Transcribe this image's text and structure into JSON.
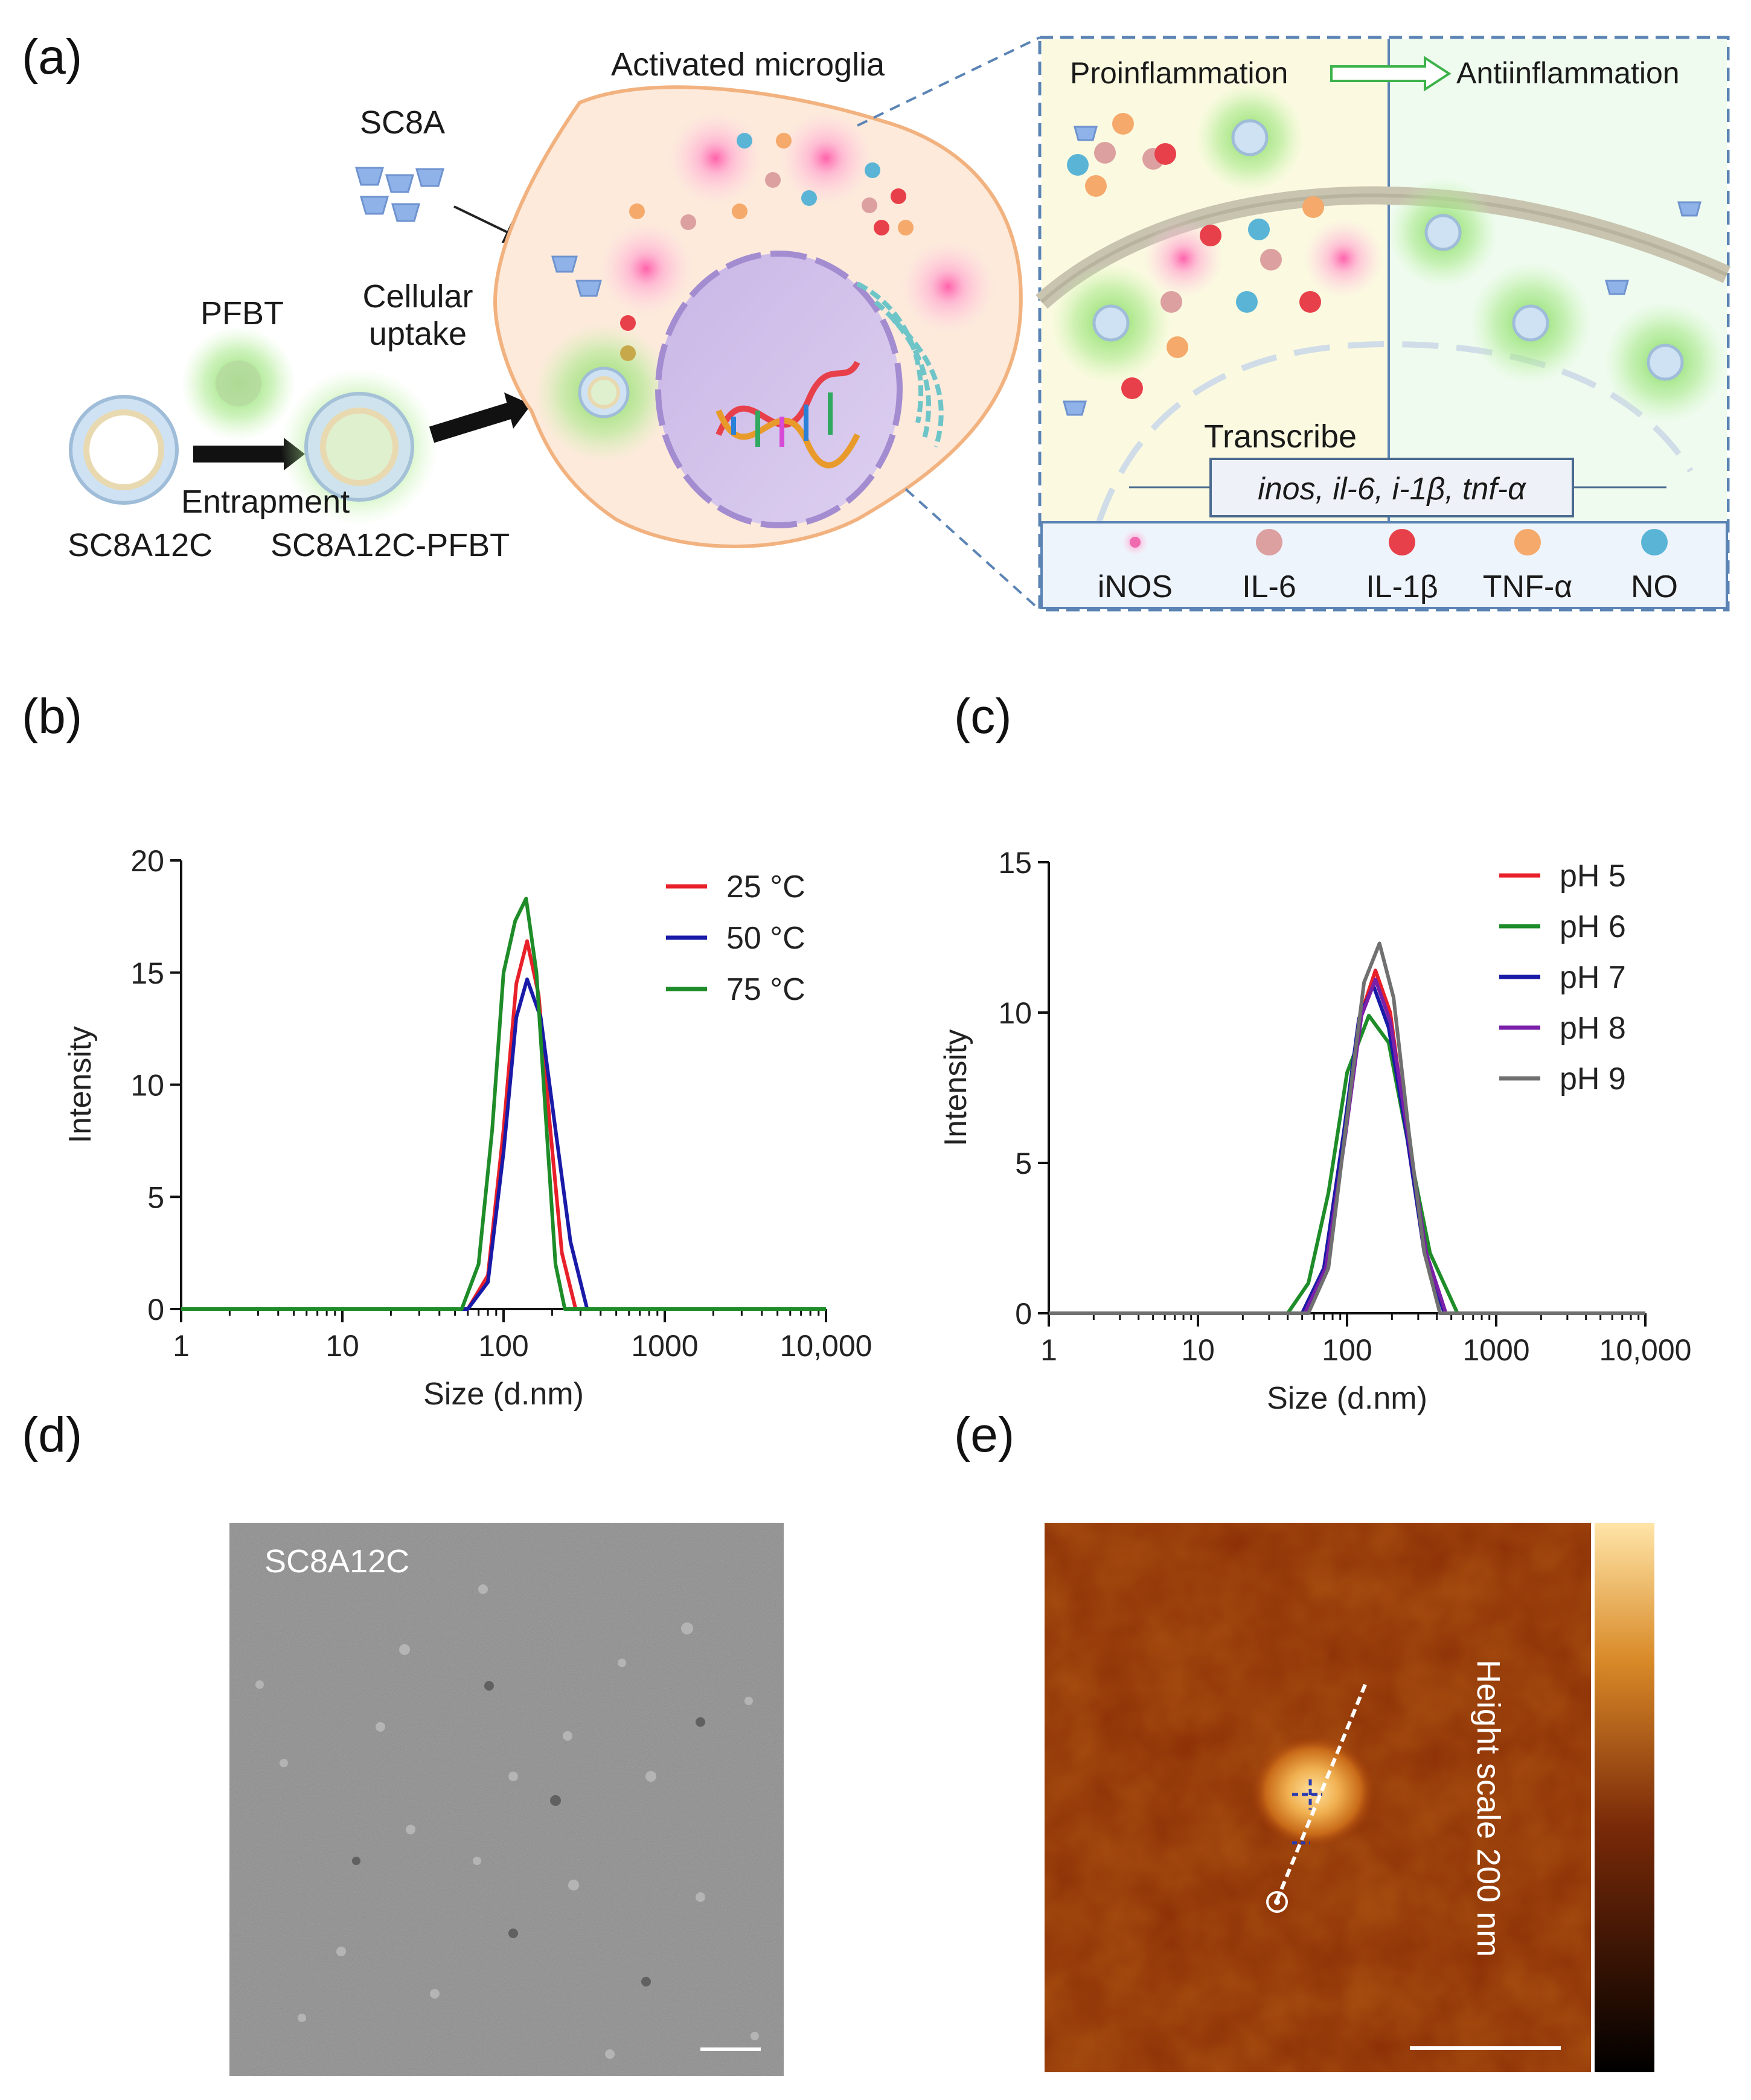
{
  "panels": {
    "a": "(a)",
    "b": "(b)",
    "c": "(c)",
    "d": "(d)",
    "e": "(e)"
  },
  "schematic": {
    "sc8a": "SC8A",
    "pfbt": "PFBT",
    "cellular_uptake_line1": "Cellular",
    "cellular_uptake_line2": "uptake",
    "entrapment": "Entrapment",
    "sc8a12c": "SC8A12C",
    "sc8a12c_pfbt": "SC8A12C-PFBT",
    "activated_microglia": "Activated microglia",
    "proinflammation": "Proinflammation",
    "antiinflammation": "Antiinflammation",
    "transcribe": "Transcribe",
    "genes": "inos, il-6, i-1β, tnf-α",
    "legend": [
      "iNOS",
      "IL-6",
      "IL-1β",
      "TNF-α",
      "NO"
    ],
    "colors": {
      "inos": "#f06ab0",
      "il6": "#dca0a0",
      "il1b": "#e8404a",
      "tnfa": "#f5a96a",
      "no": "#5ab4d6",
      "pfbt": "#7ed957"
    }
  },
  "chart_data": [
    {
      "type": "line",
      "panel": "b",
      "xscale": "log",
      "xlabel": "Size (d.nm)",
      "ylabel": "Intensity",
      "xlim": [
        1,
        10000
      ],
      "ylim": [
        0,
        20
      ],
      "xticks": [
        1,
        10,
        100,
        1000,
        10000
      ],
      "xtick_labels": [
        "1",
        "10",
        "100",
        "1000",
        "10,000"
      ],
      "yticks": [
        0,
        5,
        10,
        15,
        20
      ],
      "ytick_labels": [
        "0",
        "5",
        "10",
        "15",
        "20"
      ],
      "series": [
        {
          "name": "25 °C",
          "color": "#e8202a",
          "x": [
            1,
            60,
            80,
            100,
            120,
            140,
            165,
            195,
            230,
            280,
            10000
          ],
          "y": [
            0,
            0,
            1.5,
            8,
            14.5,
            16.4,
            14,
            8,
            2.5,
            0,
            0
          ]
        },
        {
          "name": "50 °C",
          "color": "#1a1aa8",
          "x": [
            1,
            60,
            80,
            100,
            120,
            140,
            170,
            210,
            260,
            330,
            10000
          ],
          "y": [
            0,
            0,
            1.2,
            7,
            13,
            14.7,
            13,
            8,
            3,
            0,
            0
          ]
        },
        {
          "name": "75 °C",
          "color": "#1e8c28",
          "x": [
            1,
            55,
            70,
            85,
            100,
            118,
            138,
            160,
            185,
            210,
            240,
            10000
          ],
          "y": [
            0,
            0,
            2,
            8,
            15,
            17.3,
            18.3,
            15,
            8,
            2,
            0,
            0
          ]
        }
      ]
    },
    {
      "type": "line",
      "panel": "c",
      "xscale": "log",
      "xlabel": "Size (d.nm)",
      "ylabel": "Intensity",
      "xlim": [
        1,
        10000
      ],
      "ylim": [
        0,
        15
      ],
      "xticks": [
        1,
        10,
        100,
        1000,
        10000
      ],
      "xtick_labels": [
        "1",
        "10",
        "100",
        "1000",
        "10,000"
      ],
      "yticks": [
        0,
        5,
        10,
        15
      ],
      "ytick_labels": [
        "0",
        "5",
        "10",
        "15"
      ],
      "series": [
        {
          "name": "pH 5",
          "color": "#e8202a",
          "x": [
            1,
            50,
            70,
            95,
            125,
            155,
            195,
            250,
            330,
            450,
            10000
          ],
          "y": [
            0,
            0,
            1.5,
            6,
            10,
            11.4,
            10,
            6,
            2,
            0,
            0
          ]
        },
        {
          "name": "pH 6",
          "color": "#1e8c28",
          "x": [
            1,
            40,
            55,
            75,
            100,
            140,
            190,
            260,
            360,
            550,
            10000
          ],
          "y": [
            0,
            0,
            1,
            4,
            8,
            9.9,
            9,
            5.5,
            2,
            0,
            0
          ]
        },
        {
          "name": "pH 7",
          "color": "#1a1aa8",
          "x": [
            1,
            50,
            70,
            95,
            120,
            150,
            190,
            250,
            330,
            450,
            10000
          ],
          "y": [
            0,
            0,
            1.5,
            6,
            9.8,
            10.9,
            9.5,
            6,
            2,
            0,
            0
          ]
        },
        {
          "name": "pH 8",
          "color": "#7a1fa8",
          "x": [
            1,
            52,
            72,
            98,
            125,
            155,
            195,
            255,
            340,
            460,
            10000
          ],
          "y": [
            0,
            0,
            1.5,
            6,
            9.9,
            11.1,
            9.7,
            6,
            2,
            0,
            0
          ]
        },
        {
          "name": "pH 9",
          "color": "#707070",
          "x": [
            1,
            55,
            75,
            100,
            130,
            165,
            205,
            260,
            330,
            420,
            10000
          ],
          "y": [
            0,
            0,
            1.5,
            6.5,
            11,
            12.3,
            10.5,
            6,
            2,
            0,
            0
          ]
        }
      ]
    }
  ],
  "images": {
    "tem_label": "SC8A12C",
    "afm_scale_label": "Height scale 200 nm"
  }
}
